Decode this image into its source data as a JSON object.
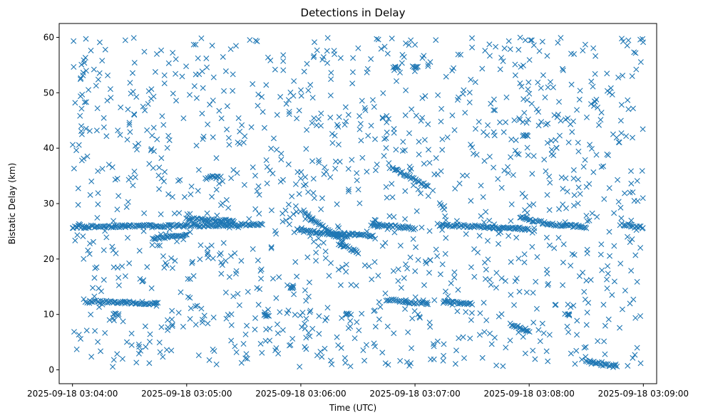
{
  "chart_data": {
    "type": "scatter",
    "title": "Detections in Delay",
    "xlabel": "Time (UTC)",
    "ylabel": "Bistatic Delay (km)",
    "marker": "x",
    "color": "#1f77b4",
    "grid": false,
    "legend": "none",
    "xlim": [
      "2025-09-18 03:03:53",
      "2025-09-18 03:09:07"
    ],
    "ylim": [
      -2.5,
      62.5
    ],
    "xticks": [
      "2025-09-18 03:04:00",
      "2025-09-18 03:05:00",
      "2025-09-18 03:06:00",
      "2025-09-18 03:07:00",
      "2025-09-18 03:08:00",
      "2025-09-18 03:09:00"
    ],
    "yticks": [
      "0",
      "10",
      "20",
      "30",
      "40",
      "50",
      "60"
    ],
    "tracks": [
      {
        "from": "2025-09-18 03:04:00",
        "to": "2025-09-18 03:05:40",
        "y_start": 25.8,
        "y_end": 26.2
      },
      {
        "from": "2025-09-18 03:04:08",
        "to": "2025-09-18 03:04:45",
        "y_start": 12.3,
        "y_end": 12.0
      },
      {
        "from": "2025-09-18 03:04:42",
        "to": "2025-09-18 03:05:00",
        "y_start": 23.7,
        "y_end": 24.3
      },
      {
        "from": "2025-09-18 03:05:00",
        "to": "2025-09-18 03:05:25",
        "y_start": 27.3,
        "y_end": 26.8
      },
      {
        "from": "2025-09-18 03:05:10",
        "to": "2025-09-18 03:05:18",
        "y_start": 34.6,
        "y_end": 34.9
      },
      {
        "from": "2025-09-18 03:05:58",
        "to": "2025-09-18 03:06:25",
        "y_start": 25.2,
        "y_end": 24.2
      },
      {
        "from": "2025-09-18 03:06:02",
        "to": "2025-09-18 03:06:22",
        "y_start": 28.2,
        "y_end": 23.2
      },
      {
        "from": "2025-09-18 03:06:18",
        "to": "2025-09-18 03:06:38",
        "y_start": 24.6,
        "y_end": 24.2
      },
      {
        "from": "2025-09-18 03:06:20",
        "to": "2025-09-18 03:06:30",
        "y_start": 22.8,
        "y_end": 21.2
      },
      {
        "from": "2025-09-18 03:06:37",
        "to": "2025-09-18 03:07:00",
        "y_start": 26.3,
        "y_end": 25.5
      },
      {
        "from": "2025-09-18 03:06:48",
        "to": "2025-09-18 03:07:07",
        "y_start": 36.5,
        "y_end": 33.0
      },
      {
        "from": "2025-09-18 03:06:45",
        "to": "2025-09-18 03:07:07",
        "y_start": 12.6,
        "y_end": 12.0
      },
      {
        "from": "2025-09-18 03:07:15",
        "to": "2025-09-18 03:07:30",
        "y_start": 12.3,
        "y_end": 11.9
      },
      {
        "from": "2025-09-18 03:07:12",
        "to": "2025-09-18 03:08:00",
        "y_start": 26.2,
        "y_end": 25.4
      },
      {
        "from": "2025-09-18 03:07:55",
        "to": "2025-09-18 03:08:10",
        "y_start": 27.6,
        "y_end": 26.3
      },
      {
        "from": "2025-09-18 03:07:50",
        "to": "2025-09-18 03:08:00",
        "y_start": 8.3,
        "y_end": 7.0
      },
      {
        "from": "2025-09-18 03:08:10",
        "to": "2025-09-18 03:08:30",
        "y_start": 26.3,
        "y_end": 25.8
      },
      {
        "from": "2025-09-18 03:08:30",
        "to": "2025-09-18 03:08:38",
        "y_start": 1.6,
        "y_end": 1.2
      },
      {
        "from": "2025-09-18 03:08:38",
        "to": "2025-09-18 03:08:46",
        "y_start": 1.0,
        "y_end": 0.6
      },
      {
        "from": "2025-09-18 03:08:48",
        "to": "2025-09-18 03:09:00",
        "y_start": 26.3,
        "y_end": 25.6
      }
    ],
    "clusters": [
      {
        "time": "2025-09-18 03:06:50",
        "y": 54.6
      },
      {
        "time": "2025-09-18 03:07:00",
        "y": 54.6
      },
      {
        "time": "2025-09-18 03:05:42",
        "y": 9.8
      },
      {
        "time": "2025-09-18 03:06:25",
        "y": 10.0
      },
      {
        "time": "2025-09-18 03:07:58",
        "y": 42.2
      },
      {
        "time": "2025-09-18 03:08:20",
        "y": 9.9
      },
      {
        "time": "2025-09-18 03:05:55",
        "y": 14.8
      },
      {
        "time": "2025-09-18 03:04:23",
        "y": 10.0
      }
    ],
    "background_points": 1300
  }
}
